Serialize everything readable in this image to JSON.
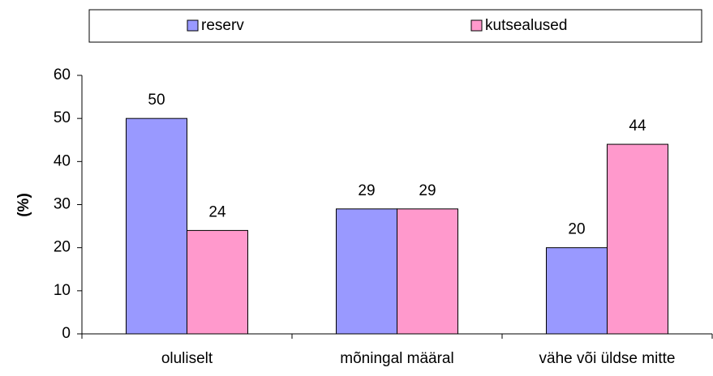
{
  "chart_data": {
    "type": "bar",
    "y_label": "(%)",
    "categories": [
      "oluliselt",
      "mõningal määral",
      "vähe või üldse mitte"
    ],
    "series": [
      {
        "name": "reserv",
        "color": "#9999ff",
        "values": [
          50,
          29,
          20
        ]
      },
      {
        "name": "kutsealused",
        "color": "#ff99cc",
        "values": [
          24,
          29,
          44
        ]
      }
    ],
    "ylim": [
      0,
      60
    ],
    "yticks": [
      0,
      10,
      20,
      30,
      40,
      50,
      60
    ],
    "grid": false,
    "legend": "top"
  }
}
